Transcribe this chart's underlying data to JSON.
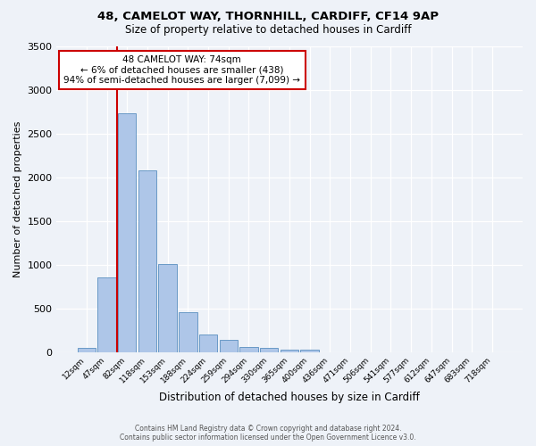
{
  "title1": "48, CAMELOT WAY, THORNHILL, CARDIFF, CF14 9AP",
  "title2": "Size of property relative to detached houses in Cardiff",
  "xlabel": "Distribution of detached houses by size in Cardiff",
  "ylabel": "Number of detached properties",
  "bar_labels": [
    "12sqm",
    "47sqm",
    "82sqm",
    "118sqm",
    "153sqm",
    "188sqm",
    "224sqm",
    "259sqm",
    "294sqm",
    "330sqm",
    "365sqm",
    "400sqm",
    "436sqm",
    "471sqm",
    "506sqm",
    "541sqm",
    "577sqm",
    "612sqm",
    "647sqm",
    "683sqm",
    "718sqm"
  ],
  "bar_values": [
    55,
    855,
    2730,
    2075,
    1010,
    455,
    205,
    145,
    65,
    50,
    30,
    25,
    0,
    0,
    0,
    0,
    0,
    0,
    0,
    0,
    0
  ],
  "bar_color": "#aec6e8",
  "bar_edge_color": "#5a8fc0",
  "vline_pos": 1.5,
  "vline_color": "#cc0000",
  "ylim": [
    0,
    3500
  ],
  "yticks": [
    0,
    500,
    1000,
    1500,
    2000,
    2500,
    3000,
    3500
  ],
  "annotation_title": "48 CAMELOT WAY: 74sqm",
  "annotation_line1": "← 6% of detached houses are smaller (438)",
  "annotation_line2": "94% of semi-detached houses are larger (7,099) →",
  "annotation_box_color": "#ffffff",
  "annotation_box_edge": "#cc0000",
  "footer1": "Contains HM Land Registry data © Crown copyright and database right 2024.",
  "footer2": "Contains public sector information licensed under the Open Government Licence v3.0.",
  "bg_color": "#eef2f8",
  "plot_bg_color": "#eef2f8",
  "grid_color": "#ffffff"
}
